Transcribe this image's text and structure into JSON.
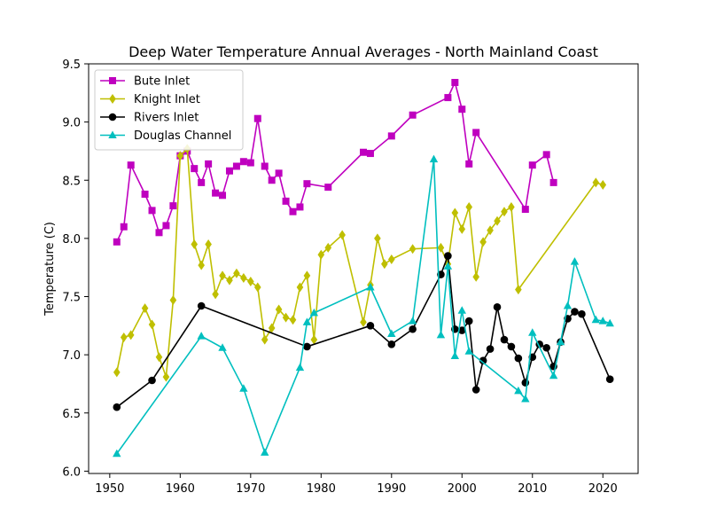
{
  "chart_data": {
    "type": "line",
    "title": "Deep Water Temperature Annual Averages - North Mainland Coast",
    "xlabel": "",
    "ylabel": "Temperature (C)",
    "xlim": [
      1947,
      2025
    ],
    "ylim": [
      5.98,
      9.5
    ],
    "xticks": [
      1950,
      1960,
      1970,
      1980,
      1990,
      2000,
      2010,
      2020
    ],
    "yticks": [
      6.0,
      6.5,
      7.0,
      7.5,
      8.0,
      8.5,
      9.0,
      9.5
    ],
    "ytick_labels": [
      "6.0",
      "6.5",
      "7.0",
      "7.5",
      "8.0",
      "8.5",
      "9.0",
      "9.5"
    ],
    "grid": false,
    "legend_position": "top-left",
    "series": [
      {
        "name": "Bute Inlet",
        "color": "#bf00bf",
        "marker": "square",
        "points": [
          [
            1951,
            7.97
          ],
          [
            1952,
            8.1
          ],
          [
            1953,
            8.63
          ],
          [
            1955,
            8.38
          ],
          [
            1956,
            8.24
          ],
          [
            1957,
            8.05
          ],
          [
            1958,
            8.11
          ],
          [
            1959,
            8.28
          ],
          [
            1960,
            8.71
          ],
          [
            1961,
            8.75
          ],
          [
            1962,
            8.6
          ],
          [
            1963,
            8.48
          ],
          [
            1964,
            8.64
          ],
          [
            1965,
            8.39
          ],
          [
            1966,
            8.37
          ],
          [
            1967,
            8.58
          ],
          [
            1968,
            8.62
          ],
          [
            1969,
            8.66
          ],
          [
            1970,
            8.65
          ],
          [
            1971,
            9.03
          ],
          [
            1972,
            8.62
          ],
          [
            1973,
            8.5
          ],
          [
            1974,
            8.56
          ],
          [
            1975,
            8.32
          ],
          [
            1976,
            8.23
          ],
          [
            1977,
            8.27
          ],
          [
            1978,
            8.47
          ],
          [
            1981,
            8.44
          ],
          [
            1986,
            8.74
          ],
          [
            1987,
            8.73
          ],
          [
            1990,
            8.88
          ],
          [
            1993,
            9.06
          ],
          [
            1998,
            9.21
          ],
          [
            1999,
            9.34
          ],
          [
            2000,
            9.11
          ],
          [
            2001,
            8.64
          ],
          [
            2002,
            8.91
          ],
          [
            2009,
            8.25
          ],
          [
            2010,
            8.63
          ],
          [
            2012,
            8.72
          ],
          [
            2013,
            8.48
          ]
        ]
      },
      {
        "name": "Knight Inlet",
        "color": "#bfbf00",
        "marker": "diamond",
        "points": [
          [
            1951,
            6.85
          ],
          [
            1952,
            7.15
          ],
          [
            1953,
            7.17
          ],
          [
            1955,
            7.4
          ],
          [
            1956,
            7.26
          ],
          [
            1957,
            6.98
          ],
          [
            1958,
            6.81
          ],
          [
            1959,
            7.47
          ],
          [
            1960,
            8.71
          ],
          [
            1961,
            8.77
          ],
          [
            1962,
            7.95
          ],
          [
            1963,
            7.77
          ],
          [
            1964,
            7.95
          ],
          [
            1965,
            7.52
          ],
          [
            1966,
            7.68
          ],
          [
            1967,
            7.64
          ],
          [
            1968,
            7.7
          ],
          [
            1969,
            7.66
          ],
          [
            1970,
            7.63
          ],
          [
            1971,
            7.58
          ],
          [
            1972,
            7.13
          ],
          [
            1973,
            7.23
          ],
          [
            1974,
            7.39
          ],
          [
            1975,
            7.32
          ],
          [
            1976,
            7.3
          ],
          [
            1977,
            7.58
          ],
          [
            1978,
            7.68
          ],
          [
            1979,
            7.13
          ],
          [
            1980,
            7.86
          ],
          [
            1981,
            7.92
          ],
          [
            1983,
            8.03
          ],
          [
            1986,
            7.28
          ],
          [
            1987,
            7.6
          ],
          [
            1988,
            8.0
          ],
          [
            1989,
            7.78
          ],
          [
            1990,
            7.82
          ],
          [
            1993,
            7.91
          ],
          [
            1997,
            7.92
          ],
          [
            1998,
            7.78
          ],
          [
            1999,
            8.22
          ],
          [
            2000,
            8.08
          ],
          [
            2001,
            8.27
          ],
          [
            2002,
            7.67
          ],
          [
            2003,
            7.97
          ],
          [
            2004,
            8.07
          ],
          [
            2005,
            8.15
          ],
          [
            2006,
            8.23
          ],
          [
            2007,
            8.27
          ],
          [
            2008,
            7.56
          ],
          [
            2019,
            8.48
          ],
          [
            2020,
            8.46
          ]
        ]
      },
      {
        "name": "Rivers Inlet",
        "color": "#000000",
        "marker": "circle",
        "points": [
          [
            1951,
            6.55
          ],
          [
            1956,
            6.78
          ],
          [
            1963,
            7.42
          ],
          [
            1978,
            7.07
          ],
          [
            1987,
            7.25
          ],
          [
            1990,
            7.09
          ],
          [
            1993,
            7.22
          ],
          [
            1997,
            7.69
          ],
          [
            1998,
            7.85
          ],
          [
            1999,
            7.22
          ],
          [
            2000,
            7.21
          ],
          [
            2001,
            7.29
          ],
          [
            2002,
            6.7
          ],
          [
            2003,
            6.95
          ],
          [
            2004,
            7.05
          ],
          [
            2005,
            7.41
          ],
          [
            2006,
            7.13
          ],
          [
            2007,
            7.07
          ],
          [
            2008,
            6.97
          ],
          [
            2009,
            6.76
          ],
          [
            2010,
            6.98
          ],
          [
            2011,
            7.09
          ],
          [
            2012,
            7.06
          ],
          [
            2013,
            6.9
          ],
          [
            2014,
            7.11
          ],
          [
            2015,
            7.31
          ],
          [
            2016,
            7.37
          ],
          [
            2017,
            7.35
          ],
          [
            2021,
            6.79
          ]
        ]
      },
      {
        "name": "Douglas Channel",
        "color": "#00bfbf",
        "marker": "triangle",
        "points": [
          [
            1951,
            6.15
          ],
          [
            1963,
            7.16
          ],
          [
            1966,
            7.06
          ],
          [
            1969,
            6.71
          ],
          [
            1972,
            6.16
          ],
          [
            1977,
            6.89
          ],
          [
            1978,
            7.28
          ],
          [
            1979,
            7.36
          ],
          [
            1987,
            7.58
          ],
          [
            1990,
            7.18
          ],
          [
            1993,
            7.29
          ],
          [
            1996,
            8.68
          ],
          [
            1997,
            7.17
          ],
          [
            1998,
            7.76
          ],
          [
            1999,
            6.99
          ],
          [
            2000,
            7.38
          ],
          [
            2001,
            7.03
          ],
          [
            2008,
            6.69
          ],
          [
            2009,
            6.62
          ],
          [
            2010,
            7.19
          ],
          [
            2013,
            6.82
          ],
          [
            2014,
            7.11
          ],
          [
            2015,
            7.42
          ],
          [
            2016,
            7.8
          ],
          [
            2019,
            7.3
          ],
          [
            2020,
            7.29
          ],
          [
            2021,
            7.27
          ]
        ]
      }
    ]
  }
}
